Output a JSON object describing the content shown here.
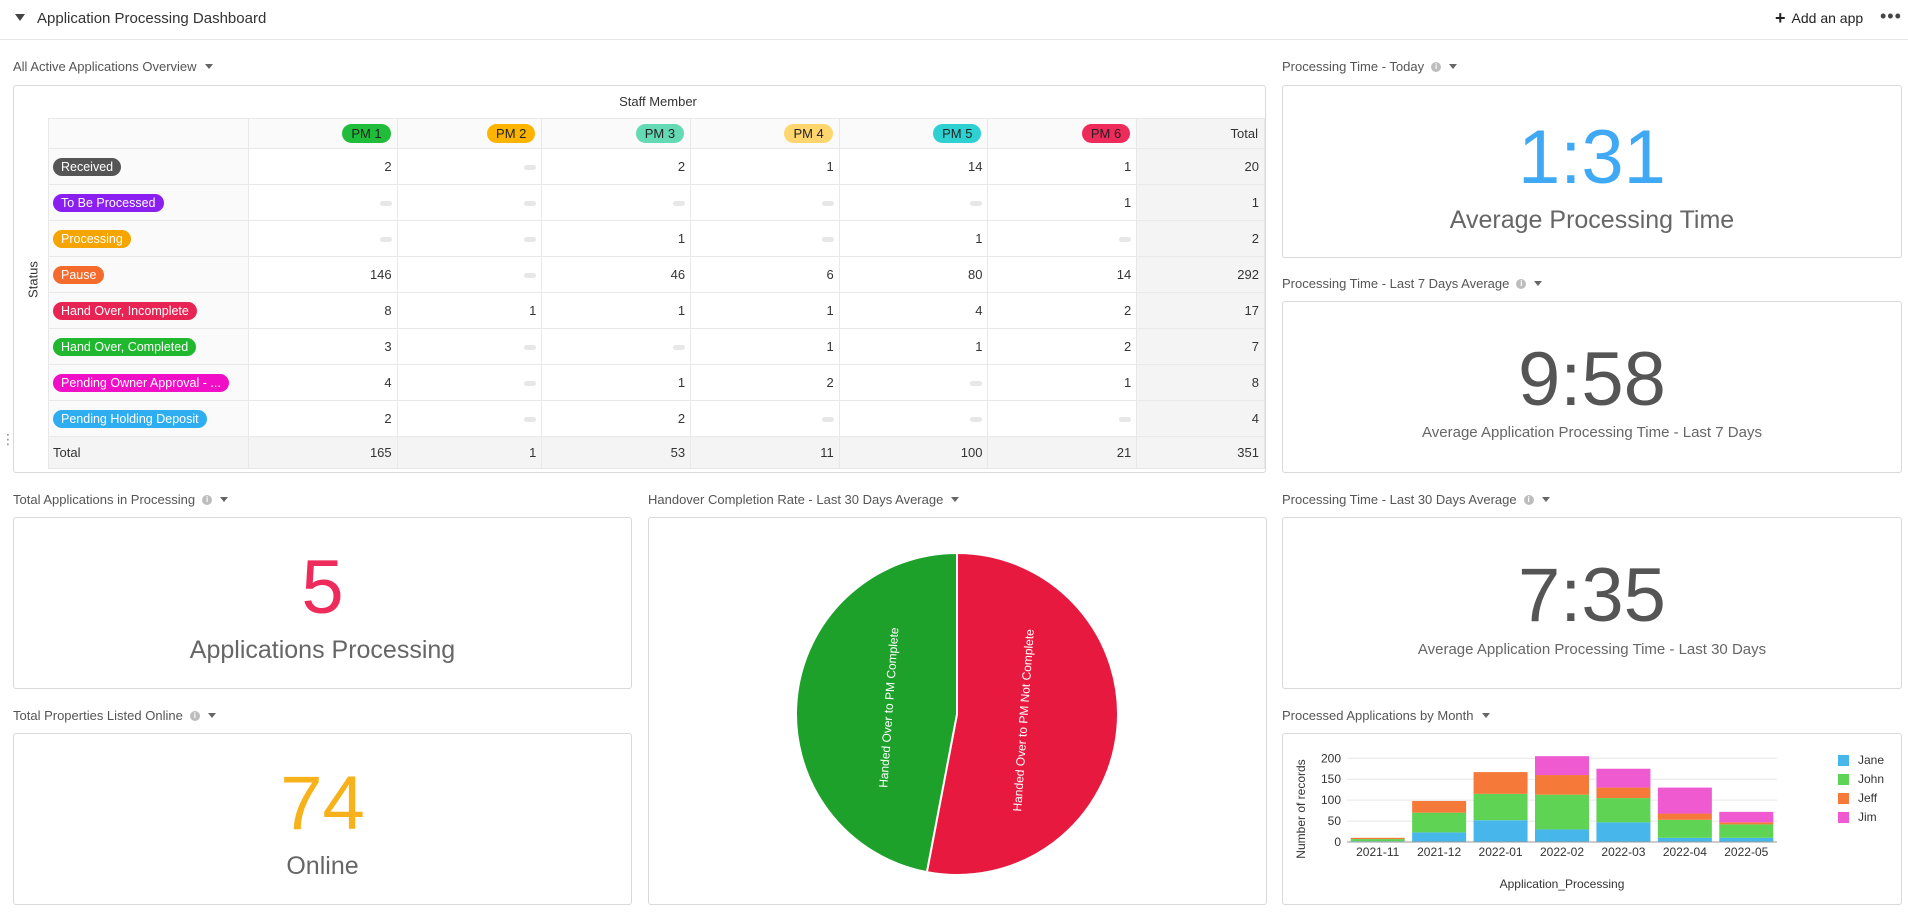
{
  "header": {
    "title": "Application Processing Dashboard",
    "add_app": "Add an app",
    "more": "•••"
  },
  "pivot": {
    "title": "All Active Applications Overview",
    "column_group_label": "Staff Member",
    "row_group_label": "Status",
    "columns": [
      {
        "label": "PM 1",
        "color": "#1fbd3a"
      },
      {
        "label": "PM 2",
        "color": "#fcb400"
      },
      {
        "label": "PM 3",
        "color": "#63d9b4"
      },
      {
        "label": "PM 4",
        "color": "#ffd66e"
      },
      {
        "label": "PM 5",
        "color": "#2ed1d1"
      },
      {
        "label": "PM 6",
        "color": "#ef2b5b"
      }
    ],
    "total_label": "Total",
    "rows": [
      {
        "label": "Received",
        "color": "#555555",
        "values": [
          "2",
          "",
          "2",
          "1",
          "14",
          "1"
        ],
        "total": "20"
      },
      {
        "label": "To Be Processed",
        "color": "#8b1ef0",
        "values": [
          "",
          "",
          "",
          "",
          "",
          "1"
        ],
        "total": "1"
      },
      {
        "label": "Processing",
        "color": "#f5a400",
        "values": [
          "",
          "",
          "1",
          "",
          "1",
          ""
        ],
        "total": "2"
      },
      {
        "label": "Pause",
        "color": "#f56b2c",
        "values": [
          "146",
          "",
          "46",
          "6",
          "80",
          "14"
        ],
        "total": "292"
      },
      {
        "label": "Hand Over, Incomplete",
        "color": "#e82454",
        "values": [
          "8",
          "1",
          "1",
          "1",
          "4",
          "2"
        ],
        "total": "17"
      },
      {
        "label": "Hand Over, Completed",
        "color": "#1fb82e",
        "values": [
          "3",
          "",
          "",
          "1",
          "1",
          "2"
        ],
        "total": "7"
      },
      {
        "label": "Pending Owner Approval - ...",
        "color": "#f00fc7",
        "values": [
          "4",
          "",
          "1",
          "2",
          "",
          "1"
        ],
        "total": "8"
      },
      {
        "label": "Pending Holding Deposit",
        "color": "#2eaef0",
        "values": [
          "2",
          "",
          "2",
          "",
          "",
          ""
        ],
        "total": "4"
      }
    ],
    "totals": [
      "165",
      "1",
      "53",
      "11",
      "100",
      "21"
    ],
    "grand_total": "351"
  },
  "today": {
    "title": "Processing Time - Today",
    "value": "1:31",
    "label": "Average Processing Time",
    "color": "#3fa9f5"
  },
  "last7": {
    "title": "Processing Time - Last 7 Days Average",
    "value": "9:58",
    "label": "Average Application Processing Time - Last 7 Days",
    "color": "#555555"
  },
  "last30": {
    "title": "Processing Time - Last 30 Days Average",
    "value": "7:35",
    "label": "Average Application Processing Time - Last 30 Days",
    "color": "#555555"
  },
  "in_processing": {
    "title": "Total Applications in Processing",
    "value": "5",
    "label": "Applications Processing",
    "color": "#ef2b5b"
  },
  "online": {
    "title": "Total Properties Listed Online",
    "value": "74",
    "label": "Online",
    "color": "#f7b21b"
  },
  "handover": {
    "title": "Handover Completion Rate - Last 30 Days Average"
  },
  "processed_chart": {
    "title": "Processed Applications by Month"
  },
  "chart_data": [
    {
      "type": "pie",
      "slices": [
        {
          "label": "Handed Over to PM Not Complete",
          "value": 53,
          "color": "#e8193f"
        },
        {
          "label": "Handed Over to PM Complete",
          "value": 47,
          "color": "#1ea12a"
        }
      ]
    },
    {
      "type": "bar",
      "stacked": true,
      "categories": [
        "2021-11",
        "2021-12",
        "2022-01",
        "2022-02",
        "2022-03",
        "2022-04",
        "2022-05"
      ],
      "series": [
        {
          "name": "Jane",
          "color": "#47b6ea",
          "values": [
            2,
            23,
            52,
            30,
            47,
            10,
            10
          ]
        },
        {
          "name": "John",
          "color": "#5fd454",
          "values": [
            5,
            47,
            63,
            83,
            58,
            43,
            32
          ]
        },
        {
          "name": "Jeff",
          "color": "#f57a3a",
          "values": [
            3,
            28,
            52,
            47,
            25,
            15,
            5
          ]
        },
        {
          "name": "Jim",
          "color": "#f05ad1",
          "values": [
            0,
            0,
            0,
            45,
            45,
            62,
            25
          ]
        }
      ],
      "xlabel": "Application_Processing",
      "ylabel": "Number of records",
      "yticks": [
        0,
        50,
        100,
        150,
        200
      ],
      "ylim": [
        0,
        215
      ],
      "legend": "right"
    }
  ]
}
